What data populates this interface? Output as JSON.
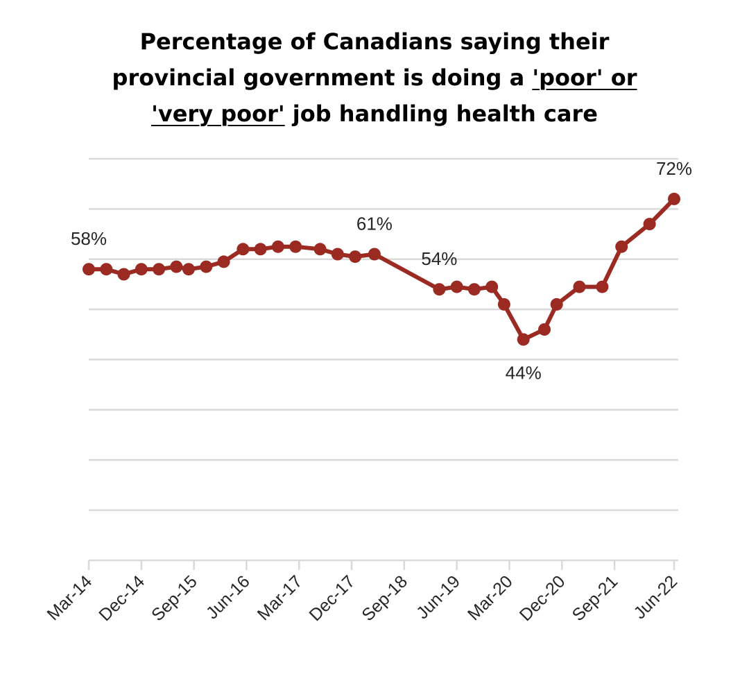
{
  "chart_data": {
    "type": "line",
    "title_parts": [
      {
        "text": "Percentage of Canadians saying their",
        "underline": false,
        "newline": true
      },
      {
        "text": "provincial government is doing a ",
        "underline": false,
        "newline": false
      },
      {
        "text": "'poor' or",
        "underline": true,
        "newline": true
      },
      {
        "text": "'very poor'",
        "underline": true,
        "newline": false
      },
      {
        "text": " job handling health care",
        "underline": false,
        "newline": false
      }
    ],
    "xlabel": "",
    "ylabel": "",
    "ylim": [
      0,
      80
    ],
    "yticks": [
      0,
      10,
      20,
      30,
      40,
      50,
      60,
      70,
      80
    ],
    "grid": true,
    "y_tick_labels_visible": false,
    "xlim": [
      0,
      33.4
    ],
    "x_ticks": [
      {
        "x": 0,
        "label": "Mar-14"
      },
      {
        "x": 3,
        "label": "Dec-14"
      },
      {
        "x": 6,
        "label": "Sep-15"
      },
      {
        "x": 9,
        "label": "Jun-16"
      },
      {
        "x": 12,
        "label": "Mar-17"
      },
      {
        "x": 15,
        "label": "Dec-17"
      },
      {
        "x": 18,
        "label": "Sep-18"
      },
      {
        "x": 21,
        "label": "Jun-19"
      },
      {
        "x": 24,
        "label": "Mar-20"
      },
      {
        "x": 27,
        "label": "Dec-20"
      },
      {
        "x": 30,
        "label": "Sep-21"
      },
      {
        "x": 33.4,
        "label": "Jun-22"
      }
    ],
    "series": [
      {
        "name": "Poor or very poor",
        "color": "#9b2b22",
        "x": [
          0,
          1,
          2,
          3,
          4,
          5,
          5.7,
          6.7,
          7.7,
          8.8,
          9.8,
          10.8,
          11.8,
          13.2,
          14.2,
          15.2,
          16.3,
          20,
          21,
          22,
          23,
          23.7,
          24.8,
          26,
          26.7,
          28,
          29.3,
          30.4,
          32,
          33.4
        ],
        "values": [
          58,
          58,
          57,
          58,
          58,
          58.5,
          58,
          58.5,
          59.5,
          62,
          62,
          62.5,
          62.5,
          62,
          61,
          60.5,
          61,
          54,
          54.5,
          54,
          54.5,
          51,
          44,
          46,
          51,
          54.5,
          54.5,
          62.5,
          67,
          72
        ]
      }
    ],
    "annotations": [
      {
        "text": "58%",
        "point_index": 0,
        "position": "above"
      },
      {
        "text": "61%",
        "point_index": 16,
        "position": "above"
      },
      {
        "text": "54%",
        "point_index": 17,
        "position": "above"
      },
      {
        "text": "44%",
        "point_index": 22,
        "position": "below"
      },
      {
        "text": "72%",
        "point_index": 29,
        "position": "above"
      }
    ]
  }
}
